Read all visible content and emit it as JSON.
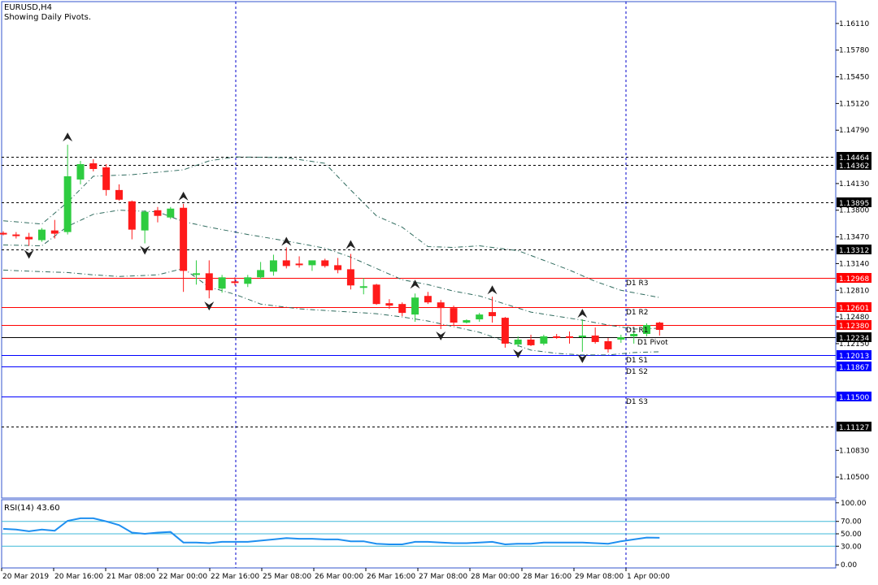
{
  "header": {
    "symbol": "EURUSD,H4",
    "subtitle": "Showing Daily Pivots."
  },
  "colors": {
    "bull": "#2ecc40",
    "bear": "#ff1a1a",
    "grid": "#0000cc",
    "frame": "#3355cc",
    "pivot_red": "#ff0000",
    "pivot_blue": "#0000ff",
    "black": "#000000",
    "band": "#2f6b5e",
    "rsi_line": "#1e8ff0",
    "rsi_level": "#3fb8d8"
  },
  "chart_data": [
    {
      "type": "candlestick",
      "title": "EURUSD,H4",
      "ylim": [
        1.1024,
        1.1638
      ],
      "y_ticks": [
        "1.16110",
        "1.15780",
        "1.15450",
        "1.15120",
        "1.14790",
        "1.14130",
        "1.13800",
        "1.13470",
        "1.13140",
        "1.12810",
        "1.12480",
        "1.12150",
        "1.10830",
        "1.10500"
      ],
      "x_ticks": [
        "20 Mar 2019",
        "20 Mar 16:00",
        "21 Mar 08:00",
        "22 Mar 00:00",
        "22 Mar 16:00",
        "25 Mar 08:00",
        "26 Mar 00:00",
        "26 Mar 16:00",
        "27 Mar 08:00",
        "28 Mar 00:00",
        "28 Mar 16:00",
        "29 Mar 08:00",
        "1 Apr 00:00"
      ],
      "candles": [
        {
          "o": 1.1352,
          "h": 1.1354,
          "l": 1.1349,
          "c": 1.135
        },
        {
          "o": 1.135,
          "h": 1.1353,
          "l": 1.1345,
          "c": 1.1348
        },
        {
          "o": 1.1347,
          "h": 1.1352,
          "l": 1.1336,
          "c": 1.1344
        },
        {
          "o": 1.1343,
          "h": 1.1358,
          "l": 1.1341,
          "c": 1.1356
        },
        {
          "o": 1.1355,
          "h": 1.1368,
          "l": 1.1345,
          "c": 1.1351
        },
        {
          "o": 1.1353,
          "h": 1.1461,
          "l": 1.135,
          "c": 1.1422
        },
        {
          "o": 1.1418,
          "h": 1.1441,
          "l": 1.1412,
          "c": 1.1437
        },
        {
          "o": 1.1438,
          "h": 1.1443,
          "l": 1.1428,
          "c": 1.1431
        },
        {
          "o": 1.1433,
          "h": 1.1437,
          "l": 1.1398,
          "c": 1.1405
        },
        {
          "o": 1.1405,
          "h": 1.1412,
          "l": 1.1392,
          "c": 1.1393
        },
        {
          "o": 1.1391,
          "h": 1.1392,
          "l": 1.1344,
          "c": 1.1356
        },
        {
          "o": 1.1355,
          "h": 1.138,
          "l": 1.1339,
          "c": 1.1378
        },
        {
          "o": 1.138,
          "h": 1.1384,
          "l": 1.1365,
          "c": 1.1373
        },
        {
          "o": 1.1371,
          "h": 1.1384,
          "l": 1.1369,
          "c": 1.1382
        },
        {
          "o": 1.1383,
          "h": 1.1388,
          "l": 1.1279,
          "c": 1.1305
        },
        {
          "o": 1.1301,
          "h": 1.1318,
          "l": 1.1288,
          "c": 1.1302
        },
        {
          "o": 1.1302,
          "h": 1.1318,
          "l": 1.1271,
          "c": 1.1281
        },
        {
          "o": 1.1283,
          "h": 1.13,
          "l": 1.1278,
          "c": 1.1297
        },
        {
          "o": 1.1292,
          "h": 1.1297,
          "l": 1.1287,
          "c": 1.129
        },
        {
          "o": 1.1289,
          "h": 1.13,
          "l": 1.1285,
          "c": 1.1297
        },
        {
          "o": 1.1297,
          "h": 1.1316,
          "l": 1.1295,
          "c": 1.1306
        },
        {
          "o": 1.1304,
          "h": 1.1325,
          "l": 1.1299,
          "c": 1.1318
        },
        {
          "o": 1.1318,
          "h": 1.1334,
          "l": 1.1308,
          "c": 1.1311
        },
        {
          "o": 1.1314,
          "h": 1.1323,
          "l": 1.1309,
          "c": 1.1312
        },
        {
          "o": 1.1312,
          "h": 1.1318,
          "l": 1.1305,
          "c": 1.1318
        },
        {
          "o": 1.1318,
          "h": 1.132,
          "l": 1.1309,
          "c": 1.1311
        },
        {
          "o": 1.1312,
          "h": 1.1321,
          "l": 1.1302,
          "c": 1.1306
        },
        {
          "o": 1.1307,
          "h": 1.1326,
          "l": 1.1282,
          "c": 1.1287
        },
        {
          "o": 1.1284,
          "h": 1.1296,
          "l": 1.1276,
          "c": 1.1286
        },
        {
          "o": 1.1288,
          "h": 1.1289,
          "l": 1.1263,
          "c": 1.1264
        },
        {
          "o": 1.1265,
          "h": 1.127,
          "l": 1.1258,
          "c": 1.1262
        },
        {
          "o": 1.1264,
          "h": 1.1266,
          "l": 1.1249,
          "c": 1.1253
        },
        {
          "o": 1.1251,
          "h": 1.1277,
          "l": 1.1242,
          "c": 1.1272
        },
        {
          "o": 1.1274,
          "h": 1.1279,
          "l": 1.1264,
          "c": 1.1266
        },
        {
          "o": 1.1266,
          "h": 1.1269,
          "l": 1.1233,
          "c": 1.1259
        },
        {
          "o": 1.1259,
          "h": 1.1262,
          "l": 1.1238,
          "c": 1.1241
        },
        {
          "o": 1.1241,
          "h": 1.1245,
          "l": 1.124,
          "c": 1.1244
        },
        {
          "o": 1.1245,
          "h": 1.1253,
          "l": 1.1242,
          "c": 1.1251
        },
        {
          "o": 1.1254,
          "h": 1.1273,
          "l": 1.1241,
          "c": 1.1249
        },
        {
          "o": 1.1247,
          "h": 1.1248,
          "l": 1.121,
          "c": 1.1215
        },
        {
          "o": 1.1214,
          "h": 1.1224,
          "l": 1.1211,
          "c": 1.122
        },
        {
          "o": 1.122,
          "h": 1.1226,
          "l": 1.1212,
          "c": 1.1213
        },
        {
          "o": 1.1215,
          "h": 1.1226,
          "l": 1.1213,
          "c": 1.1224
        },
        {
          "o": 1.1224,
          "h": 1.1227,
          "l": 1.1221,
          "c": 1.1223
        },
        {
          "o": 1.1224,
          "h": 1.123,
          "l": 1.1215,
          "c": 1.1223
        },
        {
          "o": 1.1223,
          "h": 1.1245,
          "l": 1.1205,
          "c": 1.1225
        },
        {
          "o": 1.1225,
          "h": 1.1235,
          "l": 1.1215,
          "c": 1.1217
        },
        {
          "o": 1.1218,
          "h": 1.1222,
          "l": 1.1204,
          "c": 1.1208
        },
        {
          "o": 1.122,
          "h": 1.1226,
          "l": 1.1216,
          "c": 1.1223
        },
        {
          "o": 1.1224,
          "h": 1.123,
          "l": 1.1215,
          "c": 1.1227
        },
        {
          "o": 1.1227,
          "h": 1.124,
          "l": 1.1224,
          "c": 1.1238
        },
        {
          "o": 1.1241,
          "h": 1.1242,
          "l": 1.1225,
          "c": 1.1232
        }
      ],
      "pivot_levels": [
        {
          "label": "D1 R3",
          "value": 1.12968,
          "tag": "1.12968",
          "style": "red"
        },
        {
          "label": "D1 R2",
          "value": 1.12601,
          "tag": "1.12601",
          "style": "red"
        },
        {
          "label": "D1 R1",
          "value": 1.1238,
          "tag": "1.12380",
          "style": "red"
        },
        {
          "label": "D1 Pivot",
          "value": 1.12234,
          "tag": "1.12234",
          "style": "black"
        },
        {
          "label": "D1 S1",
          "value": 1.12013,
          "tag": "1.12013",
          "style": "blue"
        },
        {
          "label": "D1 S2",
          "value": 1.11867,
          "tag": "1.11867",
          "style": "blue"
        },
        {
          "label": "D1 S3",
          "value": 1.115,
          "tag": "1.11500",
          "style": "blue"
        }
      ],
      "dashed_levels": [
        {
          "value": 1.14464,
          "tag": "1.14464"
        },
        {
          "value": 1.14362,
          "tag": "1.14362"
        },
        {
          "value": 1.13895,
          "tag": "1.13895"
        },
        {
          "value": 1.13312,
          "tag": "1.13312"
        },
        {
          "value": 1.11127,
          "tag": "1.11127"
        }
      ],
      "band_upper": [
        {
          "i": 0,
          "v": 1.1367
        },
        {
          "i": 3,
          "v": 1.1363
        },
        {
          "i": 5,
          "v": 1.139
        },
        {
          "i": 7,
          "v": 1.1422
        },
        {
          "i": 10,
          "v": 1.1424
        },
        {
          "i": 14,
          "v": 1.143
        },
        {
          "i": 16,
          "v": 1.1441
        },
        {
          "i": 18,
          "v": 1.1446
        },
        {
          "i": 22,
          "v": 1.1445
        },
        {
          "i": 25,
          "v": 1.1438
        },
        {
          "i": 27,
          "v": 1.1405
        },
        {
          "i": 29,
          "v": 1.1373
        },
        {
          "i": 31,
          "v": 1.1359
        },
        {
          "i": 33,
          "v": 1.1335
        },
        {
          "i": 35,
          "v": 1.1334
        },
        {
          "i": 37,
          "v": 1.1336
        },
        {
          "i": 38,
          "v": 1.1334
        },
        {
          "i": 40,
          "v": 1.133
        },
        {
          "i": 42,
          "v": 1.1318
        },
        {
          "i": 44,
          "v": 1.1306
        },
        {
          "i": 46,
          "v": 1.1292
        },
        {
          "i": 48,
          "v": 1.1281
        },
        {
          "i": 50,
          "v": 1.1275
        },
        {
          "i": 51,
          "v": 1.1272
        }
      ],
      "band_middle": [
        {
          "i": 0,
          "v": 1.1337
        },
        {
          "i": 3,
          "v": 1.1336
        },
        {
          "i": 5,
          "v": 1.136
        },
        {
          "i": 7,
          "v": 1.1375
        },
        {
          "i": 9,
          "v": 1.138
        },
        {
          "i": 12,
          "v": 1.1378
        },
        {
          "i": 14,
          "v": 1.1366
        },
        {
          "i": 16,
          "v": 1.1359
        },
        {
          "i": 19,
          "v": 1.135
        },
        {
          "i": 22,
          "v": 1.1342
        },
        {
          "i": 25,
          "v": 1.1333
        },
        {
          "i": 27,
          "v": 1.1322
        },
        {
          "i": 29,
          "v": 1.1308
        },
        {
          "i": 31,
          "v": 1.1294
        },
        {
          "i": 33,
          "v": 1.1288
        },
        {
          "i": 35,
          "v": 1.128
        },
        {
          "i": 37,
          "v": 1.1274
        },
        {
          "i": 39,
          "v": 1.1264
        },
        {
          "i": 41,
          "v": 1.1254
        },
        {
          "i": 43,
          "v": 1.1249
        },
        {
          "i": 45,
          "v": 1.1244
        },
        {
          "i": 47,
          "v": 1.1238
        },
        {
          "i": 49,
          "v": 1.1233
        },
        {
          "i": 51,
          "v": 1.1234
        }
      ],
      "band_lower": [
        {
          "i": 0,
          "v": 1.1306
        },
        {
          "i": 3,
          "v": 1.1304
        },
        {
          "i": 5,
          "v": 1.1303
        },
        {
          "i": 7,
          "v": 1.13
        },
        {
          "i": 9,
          "v": 1.1298
        },
        {
          "i": 12,
          "v": 1.13
        },
        {
          "i": 14,
          "v": 1.1308
        },
        {
          "i": 16,
          "v": 1.1285
        },
        {
          "i": 18,
          "v": 1.1276
        },
        {
          "i": 20,
          "v": 1.1264
        },
        {
          "i": 23,
          "v": 1.1258
        },
        {
          "i": 26,
          "v": 1.1255
        },
        {
          "i": 29,
          "v": 1.1252
        },
        {
          "i": 31,
          "v": 1.1248
        },
        {
          "i": 33,
          "v": 1.1243
        },
        {
          "i": 35,
          "v": 1.1236
        },
        {
          "i": 37,
          "v": 1.1229
        },
        {
          "i": 39,
          "v": 1.1218
        },
        {
          "i": 41,
          "v": 1.1207
        },
        {
          "i": 43,
          "v": 1.1203
        },
        {
          "i": 45,
          "v": 1.1201
        },
        {
          "i": 47,
          "v": 1.1201
        },
        {
          "i": 49,
          "v": 1.1204
        },
        {
          "i": 51,
          "v": 1.1205
        }
      ],
      "fractals_up": [
        {
          "i": 5,
          "v": 1.147
        },
        {
          "i": 14,
          "v": 1.1397
        },
        {
          "i": 22,
          "v": 1.1341
        },
        {
          "i": 27,
          "v": 1.1337
        },
        {
          "i": 32,
          "v": 1.1288
        },
        {
          "i": 38,
          "v": 1.1281
        },
        {
          "i": 45,
          "v": 1.1252
        }
      ],
      "fractals_down": [
        {
          "i": 2,
          "v": 1.1326
        },
        {
          "i": 11,
          "v": 1.1331
        },
        {
          "i": 16,
          "v": 1.1262
        },
        {
          "i": 34,
          "v": 1.1225
        },
        {
          "i": 40,
          "v": 1.1203
        },
        {
          "i": 45,
          "v": 1.1197
        }
      ]
    },
    {
      "type": "line",
      "title": "RSI(14) 43.60",
      "ylim": [
        -5,
        105
      ],
      "y_ticks": [
        "100.00",
        "70.00",
        "50.00",
        "30.00",
        "0.00"
      ],
      "levels": [
        70,
        50,
        30
      ],
      "series": [
        {
          "name": "RSI(14)",
          "values": [
            58,
            57,
            54,
            57,
            55,
            71,
            75,
            75,
            70,
            64,
            52,
            50,
            52,
            53,
            36,
            36,
            35,
            37,
            37,
            37,
            39,
            41,
            43,
            42,
            42,
            41,
            41,
            38,
            38,
            34,
            33,
            33,
            37,
            37,
            36,
            35,
            35,
            36,
            37,
            33,
            34,
            34,
            36,
            36,
            36,
            36,
            35,
            34,
            38,
            41,
            44,
            43.6
          ]
        }
      ]
    }
  ]
}
